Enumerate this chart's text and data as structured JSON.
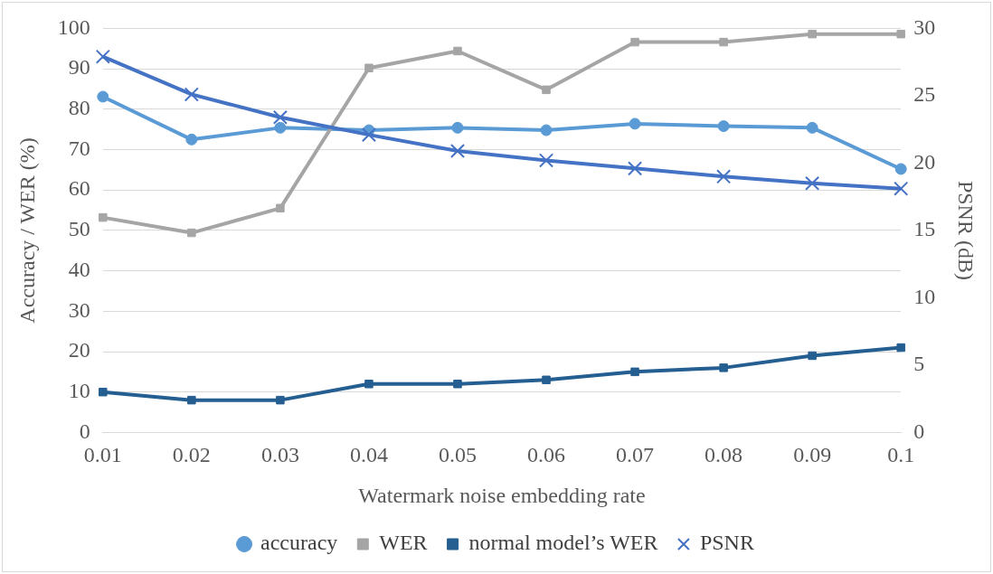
{
  "chart_data": {
    "type": "line",
    "xlabel": "Watermark noise embedding rate",
    "ylabel": "Accuracy / WER (%)",
    "y2label": "PSNR (dB)",
    "categories": [
      "0.01",
      "0.02",
      "0.03",
      "0.04",
      "0.05",
      "0.06",
      "0.07",
      "0.08",
      "0.09",
      "0.1"
    ],
    "series": [
      {
        "name": "accuracy",
        "color": "#5b9bd5",
        "marker": "circle",
        "values": [
          83.1,
          72.5,
          75.4,
          74.8,
          75.4,
          74.8,
          76.4,
          75.8,
          75.4,
          65.2
        ]
      },
      {
        "name": "WER",
        "color": "#a5a5a5",
        "marker": "square",
        "values": [
          53.2,
          49.4,
          55.5,
          90.2,
          94.4,
          84.8,
          96.6,
          96.6,
          98.6,
          98.6
        ]
      },
      {
        "name": "normal model’s WER",
        "color": "#255e91",
        "marker": "square",
        "values": [
          10,
          8,
          8,
          12,
          12,
          13,
          15,
          16,
          19,
          21
        ]
      },
      {
        "name": "PSNR",
        "color": "#4472c4",
        "marker": "cross",
        "axis": "y2",
        "values": [
          27.9,
          25.1,
          23.4,
          22.1,
          20.9,
          20.2,
          19.6,
          19.0,
          18.5,
          18.1
        ]
      }
    ],
    "ylim": [
      0,
      100
    ],
    "yticks": [
      0,
      10,
      20,
      30,
      40,
      50,
      60,
      70,
      80,
      90,
      100
    ],
    "y2lim": [
      0,
      30
    ],
    "y2ticks": [
      0,
      5,
      10,
      15,
      20,
      25,
      30
    ],
    "grid": "y",
    "legend": "bottom"
  }
}
